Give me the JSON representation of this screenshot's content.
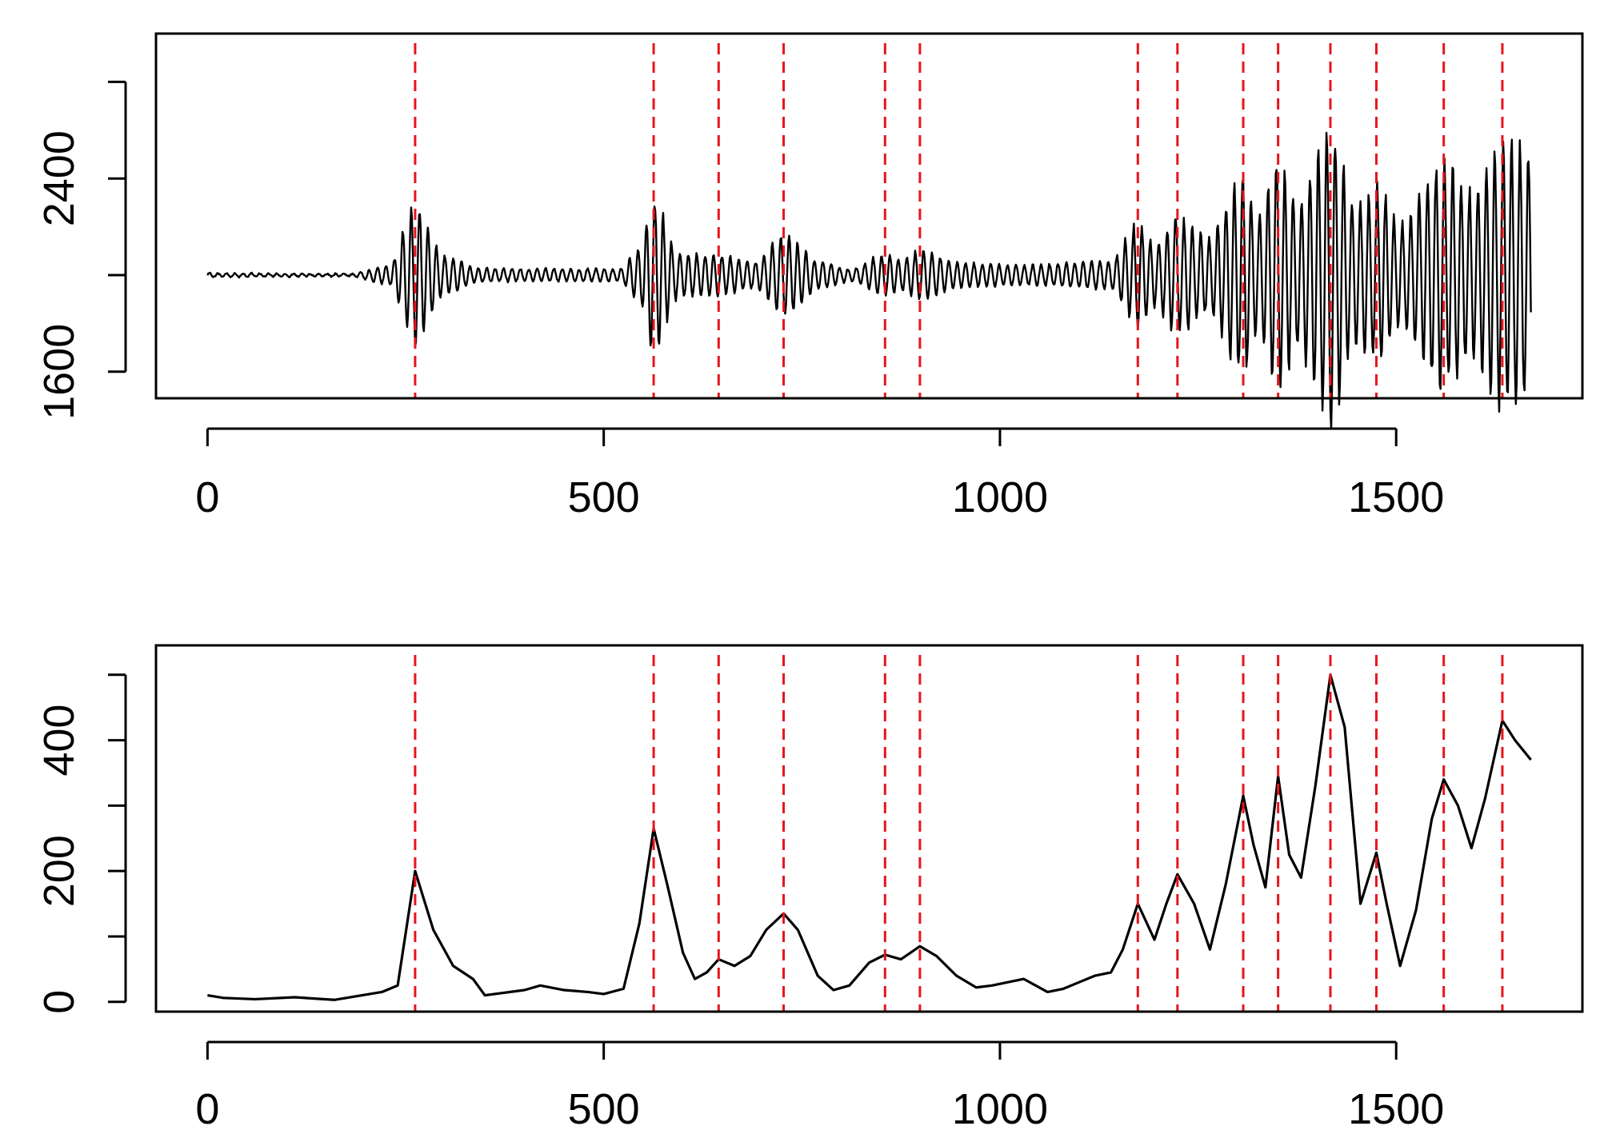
{
  "chart_data": [
    {
      "type": "line",
      "title": "",
      "xlabel": "",
      "ylabel": "",
      "xlim": [
        -65,
        1735
      ],
      "ylim": [
        1490,
        3000
      ],
      "x_ticks": [
        0,
        500,
        1000,
        1500
      ],
      "y_ticks": [
        1600,
        2000,
        2400,
        2800
      ],
      "y_tick_labels_shown": [
        "1600",
        "2400"
      ],
      "grid": false,
      "legend": "none",
      "line_color": "#000000",
      "vline_color": "#e8141c",
      "vlines": [
        262,
        563,
        645,
        727,
        855,
        899,
        1174,
        1224,
        1307,
        1351,
        1417,
        1475,
        1560,
        1634
      ],
      "baseline": 2000,
      "samples": 1670,
      "envelope_knots": [
        [
          0,
          8
        ],
        [
          180,
          6
        ],
        [
          228,
          40
        ],
        [
          262,
          310
        ],
        [
          300,
          85
        ],
        [
          345,
          30
        ],
        [
          410,
          28
        ],
        [
          520,
          28
        ],
        [
          545,
          120
        ],
        [
          563,
          350
        ],
        [
          595,
          95
        ],
        [
          645,
          90
        ],
        [
          690,
          60
        ],
        [
          727,
          180
        ],
        [
          775,
          60
        ],
        [
          810,
          28
        ],
        [
          855,
          90
        ],
        [
          875,
          70
        ],
        [
          899,
          110
        ],
        [
          950,
          55
        ],
        [
          1040,
          45
        ],
        [
          1140,
          65
        ],
        [
          1174,
          230
        ],
        [
          1195,
          140
        ],
        [
          1224,
          260
        ],
        [
          1262,
          170
        ],
        [
          1307,
          450
        ],
        [
          1325,
          260
        ],
        [
          1351,
          510
        ],
        [
          1375,
          330
        ],
        [
          1417,
          650
        ],
        [
          1450,
          310
        ],
        [
          1475,
          400
        ],
        [
          1505,
          230
        ],
        [
          1560,
          500
        ],
        [
          1595,
          380
        ],
        [
          1634,
          580
        ],
        [
          1670,
          560
        ]
      ]
    },
    {
      "type": "line",
      "title": "",
      "xlabel": "",
      "ylabel": "",
      "xlim": [
        -65,
        1735
      ],
      "ylim": [
        -15,
        545
      ],
      "x_ticks": [
        0,
        500,
        1000,
        1500
      ],
      "y_ticks": [
        0,
        100,
        200,
        300,
        400,
        500
      ],
      "y_tick_labels_shown": [
        "0",
        "200",
        "400"
      ],
      "grid": false,
      "legend": "none",
      "line_color": "#000000",
      "vline_color": "#e8141c",
      "vlines": [
        262,
        563,
        645,
        727,
        855,
        899,
        1174,
        1224,
        1307,
        1351,
        1417,
        1475,
        1560,
        1634
      ],
      "x": [
        0,
        20,
        60,
        110,
        160,
        220,
        240,
        262,
        285,
        310,
        335,
        350,
        400,
        420,
        450,
        480,
        500,
        525,
        545,
        563,
        580,
        600,
        615,
        630,
        645,
        665,
        685,
        705,
        727,
        745,
        770,
        790,
        810,
        835,
        855,
        875,
        899,
        920,
        945,
        970,
        990,
        1030,
        1060,
        1080,
        1100,
        1120,
        1140,
        1155,
        1174,
        1195,
        1210,
        1224,
        1245,
        1265,
        1285,
        1307,
        1320,
        1335,
        1351,
        1365,
        1380,
        1398,
        1417,
        1435,
        1455,
        1475,
        1488,
        1505,
        1525,
        1545,
        1560,
        1578,
        1595,
        1612,
        1634,
        1650,
        1670
      ],
      "y": [
        10,
        6,
        4,
        7,
        3,
        15,
        25,
        200,
        110,
        55,
        35,
        10,
        18,
        25,
        18,
        15,
        12,
        20,
        120,
        265,
        180,
        75,
        35,
        45,
        65,
        55,
        70,
        110,
        135,
        110,
        40,
        18,
        25,
        60,
        72,
        65,
        85,
        70,
        40,
        22,
        25,
        35,
        15,
        20,
        30,
        40,
        45,
        80,
        150,
        95,
        150,
        195,
        150,
        80,
        180,
        315,
        240,
        175,
        345,
        225,
        190,
        330,
        500,
        420,
        150,
        228,
        150,
        55,
        140,
        280,
        340,
        300,
        235,
        310,
        430,
        400,
        370
      ]
    }
  ]
}
